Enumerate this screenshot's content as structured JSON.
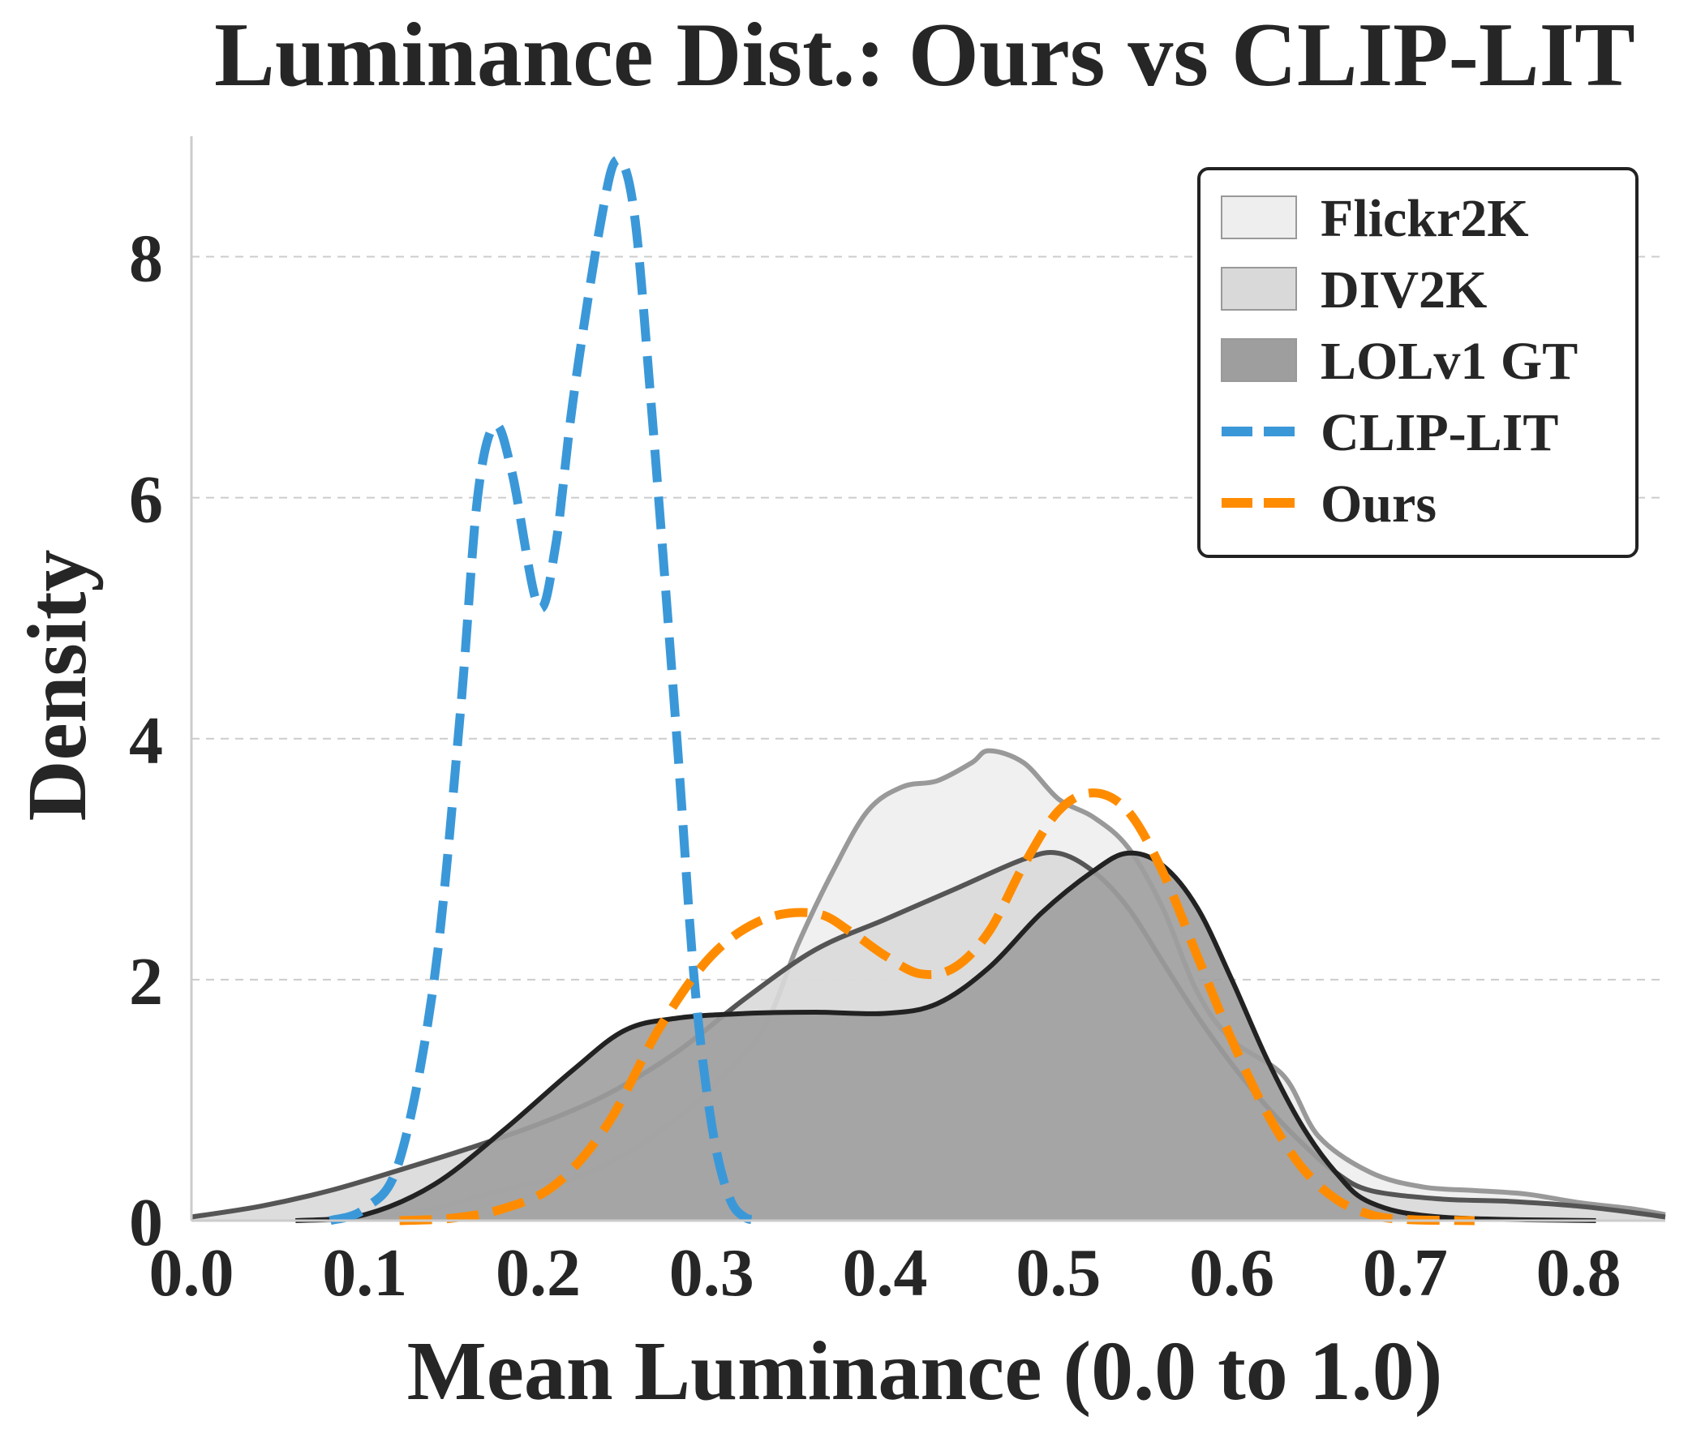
{
  "chart_data": {
    "type": "area",
    "kind": "kde-density",
    "title": "Luminance Dist.: Ours vs CLIP-LIT",
    "xlabel": "Mean Luminance (0.0 to 1.0)",
    "ylabel": "Density",
    "xlim": [
      0.0,
      0.85
    ],
    "ylim": [
      0,
      9.0
    ],
    "xticks": [
      "0.0",
      "0.1",
      "0.2",
      "0.3",
      "0.4",
      "0.5",
      "0.6",
      "0.7",
      "0.8"
    ],
    "yticks": [
      "0",
      "2",
      "4",
      "6",
      "8"
    ],
    "grid": "y-dashed",
    "legend_position": "top-right",
    "series": [
      {
        "name": "Flickr2K",
        "style": "filled",
        "fill": "#eeeeee",
        "stroke": "#999999",
        "points": [
          [
            0.06,
            0.0
          ],
          [
            0.1,
            0.02
          ],
          [
            0.14,
            0.1
          ],
          [
            0.17,
            0.22
          ],
          [
            0.2,
            0.32
          ],
          [
            0.22,
            0.35
          ],
          [
            0.25,
            0.55
          ],
          [
            0.28,
            0.85
          ],
          [
            0.3,
            1.1
          ],
          [
            0.33,
            1.6
          ],
          [
            0.35,
            2.3
          ],
          [
            0.37,
            2.9
          ],
          [
            0.39,
            3.4
          ],
          [
            0.41,
            3.6
          ],
          [
            0.43,
            3.65
          ],
          [
            0.45,
            3.8
          ],
          [
            0.46,
            3.9
          ],
          [
            0.48,
            3.8
          ],
          [
            0.5,
            3.5
          ],
          [
            0.52,
            3.35
          ],
          [
            0.54,
            3.1
          ],
          [
            0.56,
            2.6
          ],
          [
            0.58,
            1.9
          ],
          [
            0.6,
            1.5
          ],
          [
            0.63,
            1.2
          ],
          [
            0.65,
            0.7
          ],
          [
            0.68,
            0.4
          ],
          [
            0.71,
            0.28
          ],
          [
            0.74,
            0.25
          ],
          [
            0.77,
            0.22
          ],
          [
            0.8,
            0.15
          ],
          [
            0.83,
            0.1
          ],
          [
            0.85,
            0.05
          ]
        ]
      },
      {
        "name": "DIV2K",
        "style": "filled",
        "fill": "#d9d9d9",
        "stroke": "#555555",
        "points": [
          [
            0.0,
            0.03
          ],
          [
            0.04,
            0.12
          ],
          [
            0.08,
            0.25
          ],
          [
            0.12,
            0.42
          ],
          [
            0.16,
            0.6
          ],
          [
            0.2,
            0.8
          ],
          [
            0.24,
            1.05
          ],
          [
            0.28,
            1.4
          ],
          [
            0.32,
            1.85
          ],
          [
            0.36,
            2.25
          ],
          [
            0.4,
            2.5
          ],
          [
            0.44,
            2.75
          ],
          [
            0.48,
            3.0
          ],
          [
            0.5,
            3.05
          ],
          [
            0.52,
            2.9
          ],
          [
            0.54,
            2.6
          ],
          [
            0.56,
            2.15
          ],
          [
            0.58,
            1.7
          ],
          [
            0.6,
            1.3
          ],
          [
            0.62,
            0.95
          ],
          [
            0.64,
            0.65
          ],
          [
            0.66,
            0.4
          ],
          [
            0.68,
            0.25
          ],
          [
            0.72,
            0.18
          ],
          [
            0.76,
            0.16
          ],
          [
            0.8,
            0.12
          ],
          [
            0.83,
            0.07
          ],
          [
            0.85,
            0.03
          ]
        ]
      },
      {
        "name": "LOLv1 GT",
        "style": "filled",
        "fill": "#9e9e9e",
        "stroke": "#222222",
        "points": [
          [
            0.06,
            0.0
          ],
          [
            0.1,
            0.05
          ],
          [
            0.14,
            0.3
          ],
          [
            0.18,
            0.75
          ],
          [
            0.22,
            1.25
          ],
          [
            0.25,
            1.58
          ],
          [
            0.28,
            1.68
          ],
          [
            0.32,
            1.72
          ],
          [
            0.36,
            1.73
          ],
          [
            0.4,
            1.72
          ],
          [
            0.43,
            1.8
          ],
          [
            0.46,
            2.1
          ],
          [
            0.49,
            2.55
          ],
          [
            0.52,
            2.9
          ],
          [
            0.54,
            3.05
          ],
          [
            0.56,
            2.95
          ],
          [
            0.58,
            2.6
          ],
          [
            0.6,
            2.0
          ],
          [
            0.62,
            1.35
          ],
          [
            0.64,
            0.8
          ],
          [
            0.66,
            0.4
          ],
          [
            0.68,
            0.15
          ],
          [
            0.72,
            0.03
          ],
          [
            0.81,
            0.0
          ]
        ]
      },
      {
        "name": "CLIP-LIT",
        "style": "dashed",
        "stroke": "#3b98d8",
        "points": [
          [
            0.08,
            0.0
          ],
          [
            0.1,
            0.1
          ],
          [
            0.12,
            0.5
          ],
          [
            0.14,
            2.0
          ],
          [
            0.155,
            4.2
          ],
          [
            0.165,
            6.0
          ],
          [
            0.175,
            6.6
          ],
          [
            0.185,
            6.2
          ],
          [
            0.2,
            5.1
          ],
          [
            0.21,
            5.6
          ],
          [
            0.22,
            6.8
          ],
          [
            0.235,
            8.2
          ],
          [
            0.245,
            8.8
          ],
          [
            0.255,
            8.4
          ],
          [
            0.265,
            6.8
          ],
          [
            0.28,
            4.0
          ],
          [
            0.29,
            2.0
          ],
          [
            0.3,
            0.8
          ],
          [
            0.31,
            0.2
          ],
          [
            0.32,
            0.02
          ],
          [
            0.33,
            0.0
          ]
        ]
      },
      {
        "name": "Ours",
        "style": "dashed",
        "stroke": "#ff8c00",
        "points": [
          [
            0.12,
            0.0
          ],
          [
            0.15,
            0.02
          ],
          [
            0.18,
            0.1
          ],
          [
            0.21,
            0.3
          ],
          [
            0.24,
            0.8
          ],
          [
            0.27,
            1.6
          ],
          [
            0.3,
            2.2
          ],
          [
            0.33,
            2.5
          ],
          [
            0.36,
            2.55
          ],
          [
            0.38,
            2.4
          ],
          [
            0.4,
            2.2
          ],
          [
            0.42,
            2.05
          ],
          [
            0.44,
            2.1
          ],
          [
            0.46,
            2.4
          ],
          [
            0.48,
            2.95
          ],
          [
            0.5,
            3.4
          ],
          [
            0.52,
            3.55
          ],
          [
            0.54,
            3.4
          ],
          [
            0.56,
            2.9
          ],
          [
            0.58,
            2.2
          ],
          [
            0.6,
            1.5
          ],
          [
            0.62,
            0.9
          ],
          [
            0.64,
            0.45
          ],
          [
            0.66,
            0.18
          ],
          [
            0.68,
            0.05
          ],
          [
            0.7,
            0.01
          ],
          [
            0.74,
            0.0
          ]
        ]
      }
    ]
  }
}
